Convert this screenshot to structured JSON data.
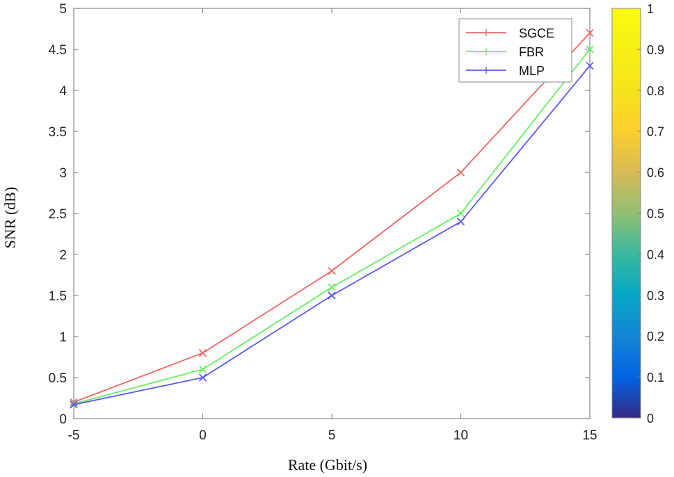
{
  "chart_data": {
    "type": "line",
    "title": "",
    "xlabel": "Rate (Gbit/s)",
    "ylabel": "SNR (dB)",
    "xlim": [
      -5,
      15
    ],
    "ylim": [
      0,
      5
    ],
    "x": [
      -5,
      0,
      5,
      10,
      15
    ],
    "xticks": [
      "-5",
      "0",
      "5",
      "10",
      "15"
    ],
    "yticks": [
      "0",
      "0.5",
      "1",
      "1.5",
      "2",
      "2.5",
      "3",
      "3.5",
      "4",
      "4.5",
      "5"
    ],
    "grid": false,
    "legend_position": "top-right",
    "series": [
      {
        "name": "SGCE",
        "color": "#f06464",
        "values": [
          0.2,
          0.8,
          1.8,
          3.0,
          4.7
        ]
      },
      {
        "name": "FBR",
        "color": "#66ee66",
        "values": [
          0.18,
          0.6,
          1.6,
          2.5,
          4.5
        ]
      },
      {
        "name": "MLP",
        "color": "#5a5af0",
        "values": [
          0.17,
          0.5,
          1.5,
          2.4,
          4.3
        ]
      }
    ],
    "colorbar": {
      "range": [
        0,
        1
      ],
      "ticks": [
        "0",
        "0.1",
        "0.2",
        "0.3",
        "0.4",
        "0.5",
        "0.6",
        "0.7",
        "0.8",
        "0.9",
        "1"
      ],
      "colormap": "parula"
    }
  }
}
